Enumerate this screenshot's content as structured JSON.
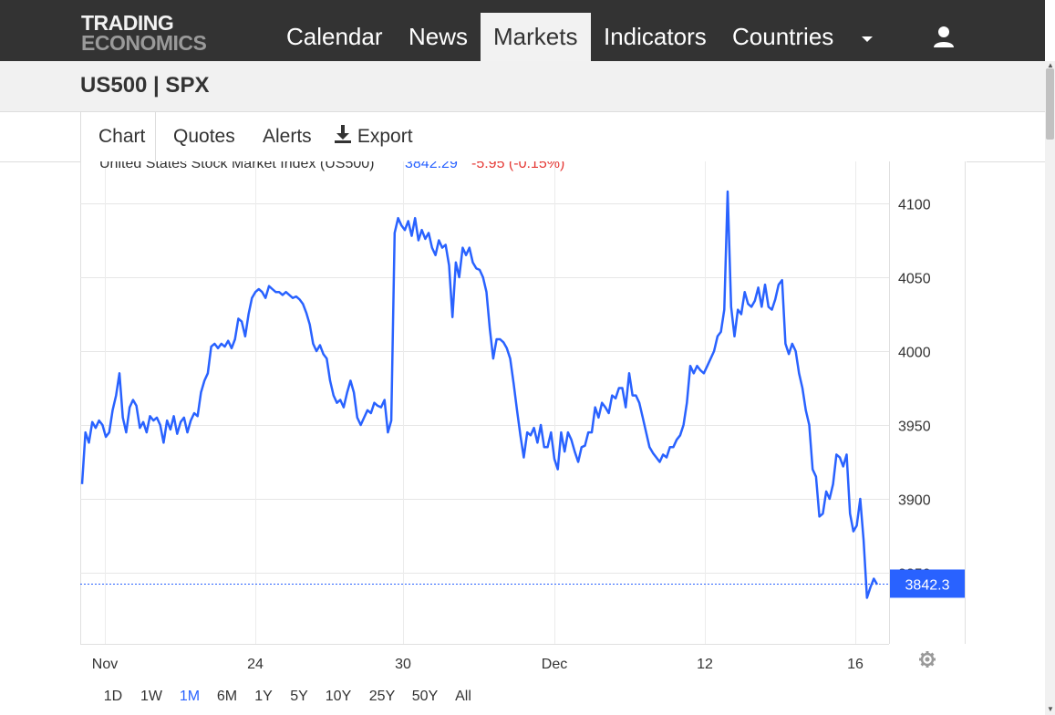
{
  "header": {
    "logo_line1": "TRADING",
    "logo_line2": "ECONOMICS",
    "nav": [
      {
        "label": "Calendar"
      },
      {
        "label": "News"
      },
      {
        "label": "Markets"
      },
      {
        "label": "Indicators"
      },
      {
        "label": "Countries"
      }
    ],
    "active_nav": "Markets",
    "icons": [
      "chevron-down-icon",
      "user-icon"
    ]
  },
  "page": {
    "symbol": "US500 | SPX"
  },
  "tabs": [
    {
      "label": "Chart"
    },
    {
      "label": "Quotes"
    },
    {
      "label": "Alerts"
    },
    {
      "label": "Export",
      "icon": "download-icon"
    }
  ],
  "chart_data": {
    "type": "line",
    "title": "United States Stock Market Index (US500)",
    "price_text": "3842.29",
    "change_text": "-5.95 (-0.15%)",
    "last_value": 3842.3,
    "last_label": "3842.3",
    "ylim": [
      3800,
      4115
    ],
    "y_ticks": [
      3850,
      3900,
      3950,
      4000,
      4050,
      4100
    ],
    "y_tick_labels": [
      "3850",
      "3900",
      "3950",
      "4000",
      "4050",
      "4100"
    ],
    "x_ticks": [
      "Nov",
      "24",
      "30",
      "Dec",
      "12",
      "16"
    ],
    "range_buttons": [
      "1D",
      "1W",
      "1M",
      "6M",
      "1Y",
      "5Y",
      "10Y",
      "25Y",
      "50Y",
      "All"
    ],
    "active_range": "1M",
    "series": [
      {
        "color": "#2962ff",
        "values": [
          3910,
          3945,
          3938,
          3952,
          3948,
          3953,
          3950,
          3942,
          3945,
          3960,
          3970,
          3985,
          3955,
          3945,
          3962,
          3967,
          3963,
          3948,
          3952,
          3945,
          3956,
          3953,
          3955,
          3950,
          3938,
          3953,
          3947,
          3956,
          3944,
          3952,
          3955,
          3945,
          3953,
          3958,
          3956,
          3972,
          3980,
          3985,
          4003,
          4005,
          4002,
          4005,
          4003,
          4007,
          4002,
          4008,
          4022,
          4020,
          4010,
          4025,
          4036,
          4040,
          4042,
          4040,
          4036,
          4044,
          4042,
          4040,
          4040,
          4038,
          4040,
          4038,
          4036,
          4037,
          4035,
          4032,
          4026,
          4018,
          4005,
          4000,
          4004,
          3998,
          3995,
          3980,
          3970,
          3965,
          3967,
          3962,
          3972,
          3980,
          3972,
          3955,
          3950,
          3955,
          3960,
          3958,
          3965,
          3963,
          3962,
          3967,
          3945,
          3953,
          4080,
          4090,
          4085,
          4082,
          4088,
          4078,
          4090,
          4075,
          4082,
          4076,
          4080,
          4070,
          4065,
          4075,
          4070,
          4072,
          4058,
          4023,
          4060,
          4050,
          4070,
          4065,
          4070,
          4060,
          4056,
          4055,
          4050,
          4040,
          4015,
          3995,
          4008,
          4008,
          4006,
          4002,
          3995,
          3978,
          3960,
          3943,
          3928,
          3945,
          3943,
          3948,
          3938,
          3950,
          3935,
          3935,
          3945,
          3927,
          3920,
          3945,
          3932,
          3945,
          3940,
          3932,
          3925,
          3935,
          3936,
          3945,
          3945,
          3962,
          3955,
          3965,
          3962,
          3958,
          3970,
          3968,
          3975,
          3975,
          3962,
          3985,
          3970,
          3970,
          3965,
          3955,
          3945,
          3935,
          3931,
          3928,
          3925,
          3930,
          3928,
          3935,
          3935,
          3940,
          3943,
          3950,
          3965,
          3990,
          3985,
          3990,
          3987,
          3985,
          3990,
          3995,
          4000,
          4010,
          4013,
          4028,
          4108,
          4030,
          4010,
          4028,
          4025,
          4040,
          4032,
          4030,
          4034,
          4043,
          4030,
          4045,
          4030,
          4028,
          4035,
          4045,
          4048,
          4005,
          3998,
          4005,
          4000,
          3985,
          3975,
          3960,
          3950,
          3920,
          3915,
          3888,
          3890,
          3905,
          3900,
          3910,
          3930,
          3928,
          3922,
          3930,
          3890,
          3878,
          3882,
          3900,
          3872,
          3833,
          3840,
          3846,
          3842
        ]
      }
    ]
  }
}
